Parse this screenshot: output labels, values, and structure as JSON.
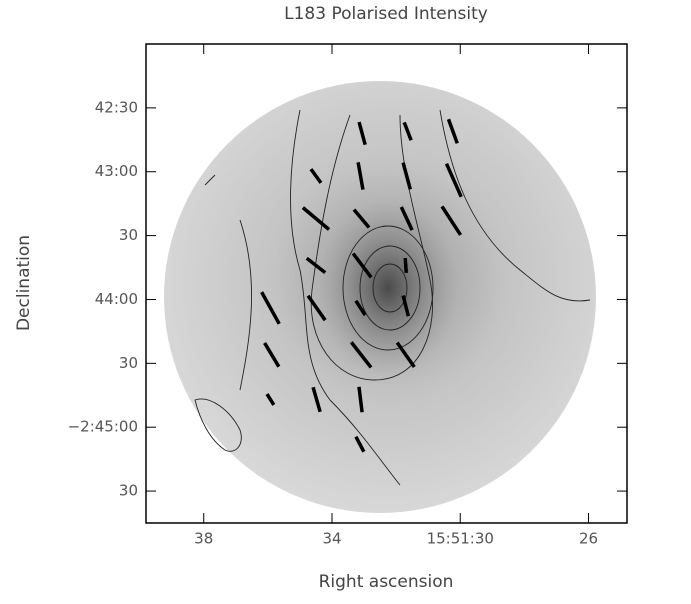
{
  "chart_data": {
    "type": "vector-map",
    "title": "L183 Polarised Intensity",
    "x_label": "Right ascension",
    "y_label": "Declination",
    "xlim": [
      57099.8,
      57084.8
    ],
    "ylim": [
      -9945,
      -9720
    ],
    "xticks": [
      {
        "value": 57098,
        "label": "38"
      },
      {
        "value": 57094,
        "label": "34"
      },
      {
        "value": 57090,
        "label": "15:51:30"
      },
      {
        "value": 57086,
        "label": "26"
      }
    ],
    "yticks": [
      {
        "value": -9750,
        "label": "42:30"
      },
      {
        "value": -9780,
        "label": "43:00"
      },
      {
        "value": -9810,
        "label": "30"
      },
      {
        "value": -9840,
        "label": "44:00"
      },
      {
        "value": -9870,
        "label": "30"
      },
      {
        "value": -9900,
        "label": "−2:45:00"
      },
      {
        "value": -9930,
        "label": "30"
      }
    ],
    "color": "#000000",
    "vectors": [
      {
        "ra": 57093.06,
        "dec": -9762,
        "pa": 15,
        "len": 11
      },
      {
        "ra": 57091.64,
        "dec": -9761,
        "pa": 21,
        "len": 9
      },
      {
        "ra": 57090.23,
        "dec": -9761,
        "pa": 20,
        "len": 12
      },
      {
        "ra": 57094.5,
        "dec": -9782,
        "pa": 36,
        "len": 8
      },
      {
        "ra": 57093.11,
        "dec": -9782,
        "pa": 10,
        "len": 13
      },
      {
        "ra": 57091.67,
        "dec": -9782,
        "pa": 15,
        "len": 13
      },
      {
        "ra": 57090.2,
        "dec": -9784,
        "pa": 24,
        "len": 17
      },
      {
        "ra": 57094.5,
        "dec": -9802,
        "pa": 50,
        "len": 16
      },
      {
        "ra": 57093.08,
        "dec": -9802,
        "pa": 40,
        "len": 11
      },
      {
        "ra": 57091.67,
        "dec": -9802,
        "pa": 25,
        "len": 12
      },
      {
        "ra": 57090.28,
        "dec": -9803,
        "pa": 33,
        "len": 16
      },
      {
        "ra": 57094.5,
        "dec": -9824,
        "pa": 52,
        "len": 11
      },
      {
        "ra": 57093.06,
        "dec": -9824,
        "pa": 37,
        "len": 14
      },
      {
        "ra": 57091.7,
        "dec": -9824,
        "pa": 4,
        "len": 7
      },
      {
        "ra": 57095.92,
        "dec": -9844,
        "pa": 29,
        "len": 17
      },
      {
        "ra": 57094.48,
        "dec": -9844,
        "pa": 35,
        "len": 14
      },
      {
        "ra": 57093.11,
        "dec": -9844,
        "pa": 33,
        "len": 8
      },
      {
        "ra": 57091.7,
        "dec": -9843,
        "pa": 14,
        "len": 10
      },
      {
        "ra": 57095.88,
        "dec": -9866,
        "pa": 31,
        "len": 13
      },
      {
        "ra": 57093.09,
        "dec": -9866,
        "pa": 38,
        "len": 15
      },
      {
        "ra": 57091.7,
        "dec": -9866,
        "pa": 35,
        "len": 14
      },
      {
        "ra": 57095.92,
        "dec": -9887,
        "pa": 32,
        "len": 6
      },
      {
        "ra": 57094.48,
        "dec": -9887,
        "pa": 16,
        "len": 12
      },
      {
        "ra": 57093.11,
        "dec": -9887,
        "pa": 7,
        "len": 12
      },
      {
        "ra": 57093.13,
        "dec": -9908,
        "pa": 28,
        "len": 8
      }
    ]
  }
}
